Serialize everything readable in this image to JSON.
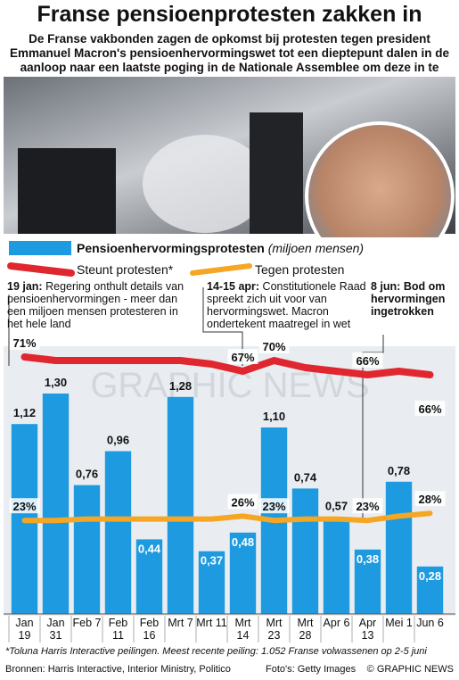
{
  "header": {
    "title": "Franse pensioenprotesten zakken in",
    "subtitle": "De Franse vakbonden zagen de opkomst bij protesten tegen president Emmanuel Macron's pensioenhervormingswet tot een dieptepunt dalen in de aanloop naar een laatste poging in de Nationale Assemblee om deze in te trekken"
  },
  "chart_data": {
    "type": "bar",
    "categories": [
      "Jan 19",
      "Jan 31",
      "Feb 7",
      "Feb 11",
      "Feb 16",
      "Mrt 7",
      "Mrt 11",
      "Mrt 14",
      "Mrt 23",
      "Mrt 28",
      "Apr 6",
      "Apr 13",
      "Mei 1",
      "Jun 6"
    ],
    "series": [
      {
        "name": "Pensioenhervormingsprotesten",
        "unit": "(miljoen mensen)",
        "color": "#1e9be0",
        "values": [
          1.12,
          1.3,
          0.76,
          0.96,
          0.44,
          1.28,
          0.37,
          0.48,
          1.1,
          0.74,
          0.57,
          0.38,
          0.78,
          0.28
        ],
        "value_labels": [
          "1,12",
          "1,30",
          "0,76",
          "0,96",
          "0,44",
          "1,28",
          "0,37",
          "0,48",
          "1,10",
          "0,74",
          "0,57",
          "0,38",
          "0,78",
          "0,28"
        ]
      },
      {
        "name": "Steunt protesten*",
        "type": "line",
        "color": "#e0262e",
        "values": [
          71,
          70,
          70,
          70,
          70,
          70,
          69,
          67,
          70,
          68,
          67,
          66,
          67,
          66
        ],
        "value_labels": [
          "71%",
          null,
          null,
          null,
          null,
          null,
          null,
          "67%",
          "70%",
          null,
          null,
          "66%",
          null,
          "66%"
        ]
      },
      {
        "name": "Tegen protesten",
        "type": "line",
        "color": "#f5a623",
        "values": [
          23,
          23,
          24,
          24,
          24,
          24,
          24,
          26,
          23,
          24,
          24,
          23,
          26,
          28
        ],
        "value_labels": [
          "23%",
          null,
          null,
          null,
          null,
          null,
          null,
          "26%",
          "23%",
          null,
          null,
          "23%",
          null,
          "28%"
        ]
      }
    ],
    "annotations": [
      {
        "date": "19 jan:",
        "text": "Regering onthult details van pensioenhervormingen - meer dan een miljoen mensen protesteren in het hele land"
      },
      {
        "date": "14-15 apr:",
        "text": "Constitutionele Raad spreekt zich uit voor van hervormingswet. Macron ondertekent maatregel in wet"
      },
      {
        "date": "8 jun:",
        "text": "Bod om hervormingen ingetrokken"
      }
    ],
    "watermark": "GRAPHIC NEWS"
  },
  "footer": {
    "note": "*Toluna Harris Interactive peilingen. Meest recente peiling: 1.052 Franse volwassenen op 2-5 juni",
    "sources": "Bronnen: Harris Interactive, Interior Ministry, Politico",
    "photo": "Foto's: Getty Images",
    "copyright": "© GRAPHIC NEWS"
  }
}
